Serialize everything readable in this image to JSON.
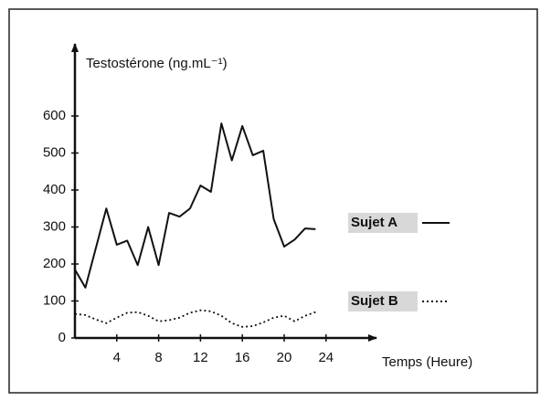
{
  "chart_data": {
    "type": "line",
    "y_label": "Testostérone (ng.mL⁻¹)",
    "x_label": "Temps (Heure)",
    "xlim": [
      0,
      28.5
    ],
    "ylim": [
      0,
      780
    ],
    "xticks": [
      4,
      8,
      12,
      16,
      20,
      24
    ],
    "yticks": [
      0,
      100,
      200,
      300,
      400,
      500,
      600
    ],
    "series": [
      {
        "name": "Sujet A",
        "color": "#111111",
        "style": "solid",
        "x": [
          0,
          1,
          3,
          4,
          5,
          6,
          7,
          8,
          9,
          10,
          11,
          12,
          13,
          14,
          15,
          16,
          17,
          18,
          19,
          20,
          21,
          22,
          23
        ],
        "values": [
          185,
          136,
          350,
          252,
          263,
          197,
          300,
          197,
          338,
          328,
          350,
          412,
          395,
          580,
          480,
          573,
          494,
          506,
          321,
          247,
          266,
          296,
          294
        ]
      },
      {
        "name": "Sujet B",
        "color": "#111111",
        "style": "dotted",
        "x": [
          0,
          1,
          2,
          3,
          4,
          5,
          6,
          7,
          8,
          9,
          10,
          11,
          12,
          13,
          14,
          15,
          16,
          17,
          18,
          19,
          20,
          21,
          22,
          23
        ],
        "values": [
          65,
          62,
          50,
          40,
          55,
          68,
          70,
          60,
          45,
          48,
          55,
          68,
          75,
          72,
          60,
          40,
          30,
          32,
          42,
          55,
          60,
          45,
          60,
          70
        ]
      }
    ]
  }
}
